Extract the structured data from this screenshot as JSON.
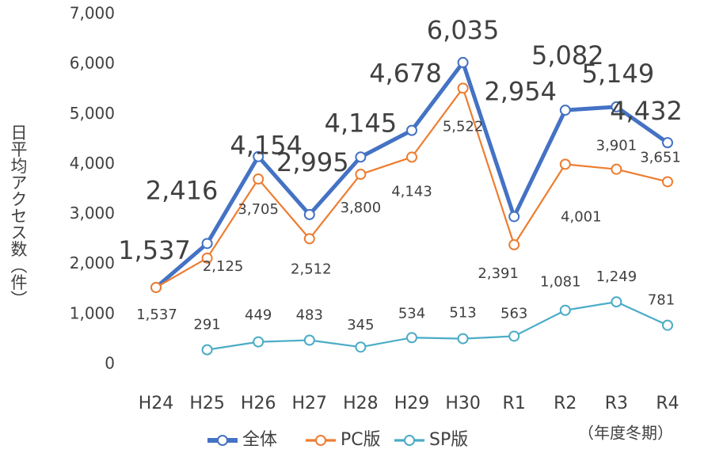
{
  "chart_data": {
    "type": "line",
    "y_label": "日平均アクセス数（件）",
    "x_note": "（年度冬期）",
    "categories": [
      "H24",
      "H25",
      "H26",
      "H27",
      "H28",
      "H29",
      "H30",
      "R1",
      "R2",
      "R3",
      "R4"
    ],
    "series": [
      {
        "name": "全体",
        "color": "#4472c4",
        "values": [
          1537,
          2416,
          4154,
          2995,
          4145,
          4678,
          6035,
          2954,
          5082,
          5149,
          4432
        ],
        "value_labels": [
          "1,537",
          "2,416",
          "4,154",
          "2,995",
          "4,145",
          "4,678",
          "6,035",
          "2,954",
          "5,082",
          "5,149",
          "4,432"
        ]
      },
      {
        "name": "PC版",
        "color": "#ed7d31",
        "values": [
          1537,
          2125,
          3705,
          2512,
          3800,
          4143,
          5522,
          2391,
          4001,
          3901,
          3651
        ],
        "value_labels": [
          "1,537",
          "2,125",
          "3,705",
          "2,512",
          "3,800",
          "4,143",
          "5,522",
          "2,391",
          "4,001",
          "3,901",
          "3,651"
        ]
      },
      {
        "name": "SP版",
        "color": "#4bacc6",
        "values": [
          null,
          291,
          449,
          483,
          345,
          534,
          513,
          563,
          1081,
          1249,
          781
        ],
        "value_labels": [
          null,
          "291",
          "449",
          "483",
          "345",
          "534",
          "513",
          "563",
          "1,081",
          "1,249",
          "781"
        ]
      }
    ],
    "ylim": [
      0,
      7000
    ],
    "yticks": [
      0,
      {
        "value": 1000,
        "label": "1,000"
      },
      {
        "value": 2000,
        "label": "2,000"
      },
      {
        "value": 3000,
        "label": "3,000"
      },
      {
        "value": 4000,
        "label": "4,000"
      },
      {
        "value": 5000,
        "label": "5,000"
      },
      {
        "value": 6000,
        "label": "6,000"
      },
      {
        "value": 7000,
        "label": "7,000"
      }
    ],
    "legend": "bottom"
  }
}
